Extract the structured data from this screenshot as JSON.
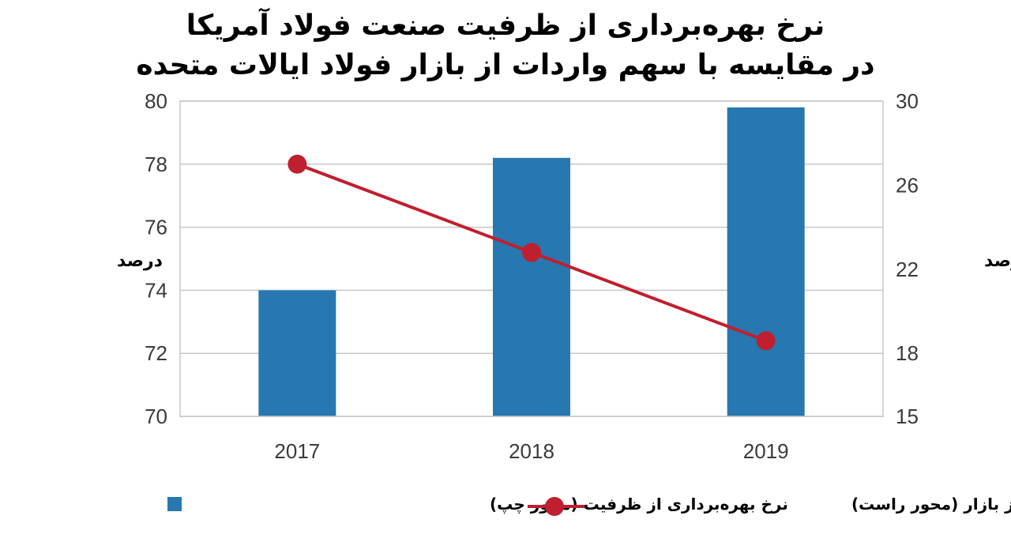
{
  "title": {
    "line1": "نرخ بهره‌برداری از ظرفیت صنعت فولاد آمریکا",
    "line2": "در مقایسه با سهم واردات از بازار فولاد ایالات متحده"
  },
  "chart_data": {
    "type": "bar",
    "categories": [
      "2017",
      "2018",
      "2019"
    ],
    "series": [
      {
        "name": "نرخ بهره‌برداری از ظرفیت (محور چپ)",
        "type": "bar",
        "axis": "left",
        "color": "#2777b0",
        "values": [
          74.0,
          78.2,
          79.8
        ]
      },
      {
        "name": "سهم واردات از بازار (محور راست)",
        "type": "line",
        "axis": "right",
        "color": "#c01f2f",
        "values": [
          27.0,
          22.8,
          18.6
        ]
      }
    ],
    "ylabel": "درصد",
    "y2label": "درصد",
    "ylim": [
      70,
      80
    ],
    "y2lim": [
      15,
      30
    ],
    "yticks": [
      "80",
      "78",
      "76",
      "74",
      "72",
      "70"
    ],
    "y2ticks": [
      "30",
      "26",
      "22",
      "18",
      "15"
    ],
    "y2tick_values": [
      30,
      26,
      22,
      18,
      15
    ],
    "grid": true,
    "legend_position": "bottom"
  }
}
